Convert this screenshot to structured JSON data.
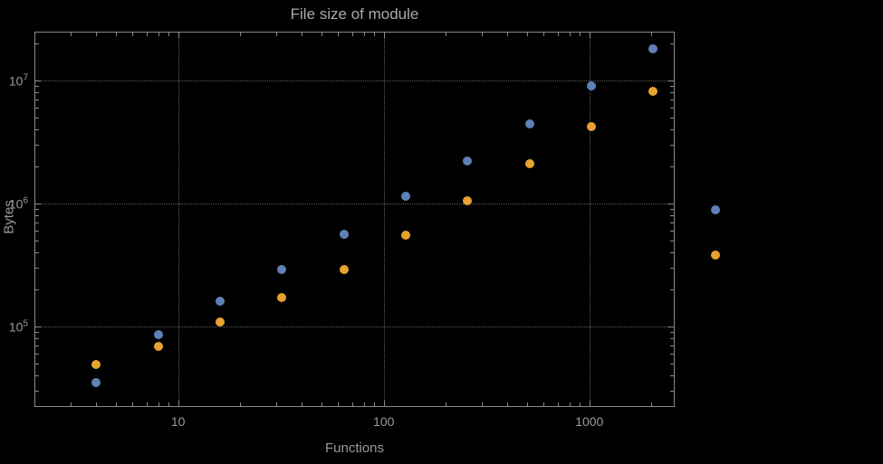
{
  "chart_data": {
    "type": "scatter",
    "title": "File size of module",
    "xlabel": "Functions",
    "ylabel": "Bytes",
    "x_scale": "log",
    "y_scale": "log",
    "xlim": [
      2,
      2600
    ],
    "ylim": [
      22000,
      25000000
    ],
    "grid": "dotted",
    "legend": "none",
    "x_ticks": [
      {
        "value": 10,
        "label": "10"
      },
      {
        "value": 100,
        "label": "100"
      },
      {
        "value": 1000,
        "label": "1000"
      }
    ],
    "y_ticks": [
      {
        "value": 100000,
        "mantissa": "10",
        "exponent": "5"
      },
      {
        "value": 1000000,
        "mantissa": "10",
        "exponent": "6"
      },
      {
        "value": 10000000,
        "mantissa": "10",
        "exponent": "7"
      }
    ],
    "series": [
      {
        "name": "series-1-blue",
        "color": "#5e81b5",
        "points": [
          [
            4,
            35000
          ],
          [
            8,
            85000
          ],
          [
            16,
            160000
          ],
          [
            32,
            290000
          ],
          [
            64,
            560000
          ],
          [
            128,
            1150000
          ],
          [
            256,
            2200000
          ],
          [
            512,
            4400000
          ],
          [
            1024,
            9000000
          ],
          [
            2048,
            18000000
          ],
          [
            4096,
            880000
          ]
        ]
      },
      {
        "name": "series-2-orange",
        "color": "#e7a231",
        "points": [
          [
            4,
            49000
          ],
          [
            8,
            69000
          ],
          [
            16,
            108000
          ],
          [
            32,
            170000
          ],
          [
            64,
            290000
          ],
          [
            128,
            550000
          ],
          [
            256,
            1050000
          ],
          [
            512,
            2100000
          ],
          [
            1024,
            4200000
          ],
          [
            2048,
            8200000
          ],
          [
            4096,
            380000
          ]
        ]
      }
    ],
    "colors": {
      "background": "#000000",
      "text": "#9b9b9b",
      "title_text": "#a9a9a9",
      "frame": "#8b8b8b",
      "grid": "#5f5f5f"
    }
  }
}
